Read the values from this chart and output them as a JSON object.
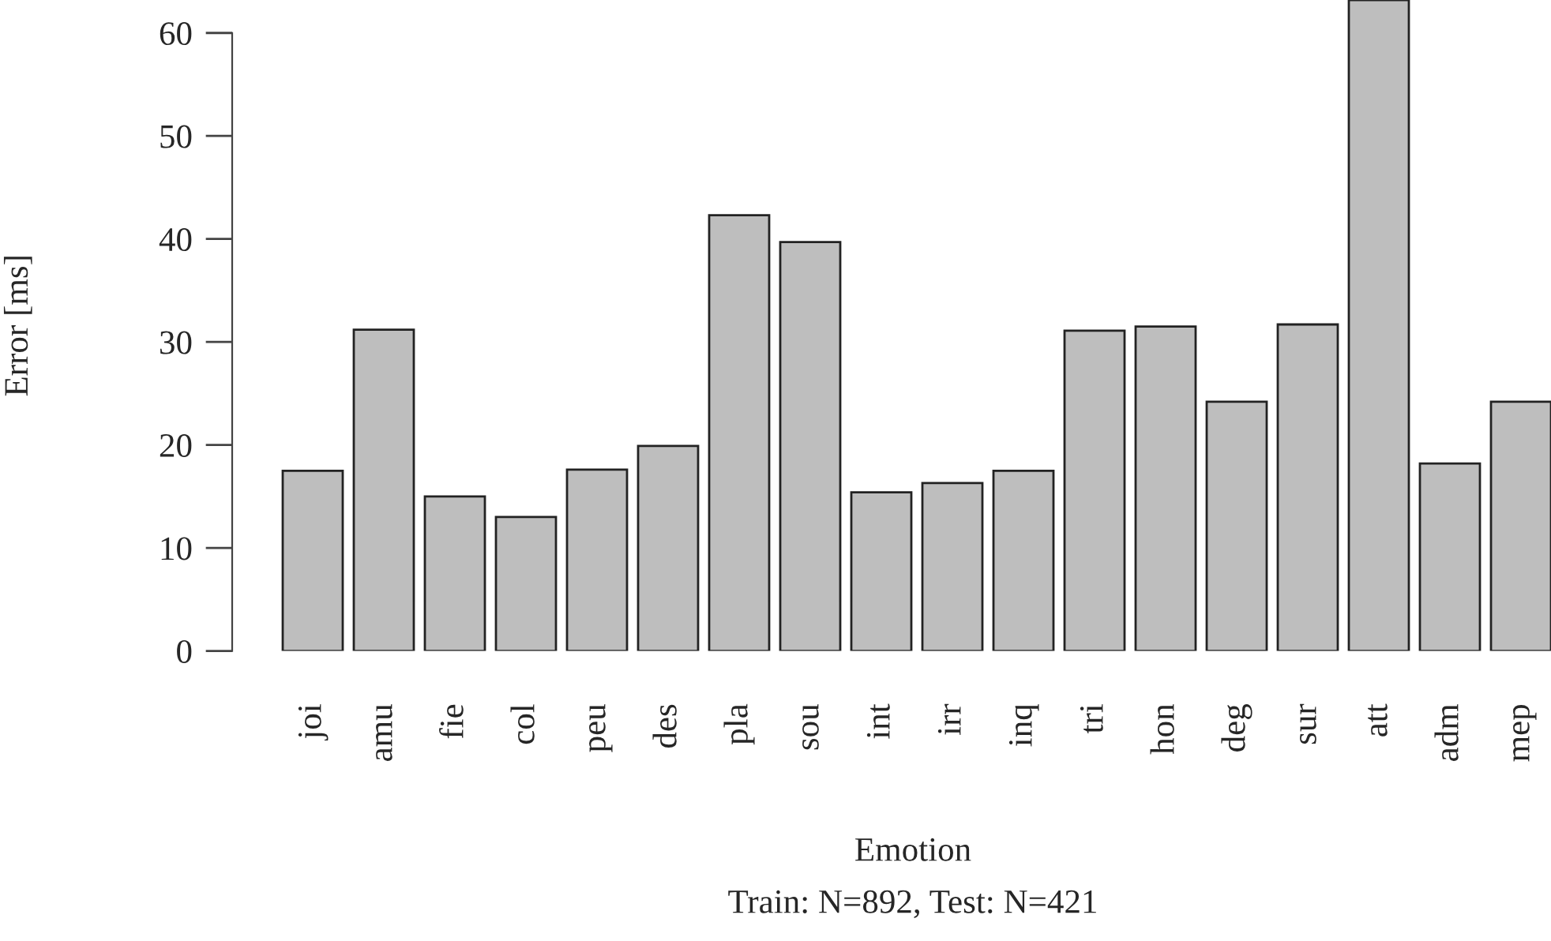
{
  "chart_data": {
    "type": "bar",
    "xlabel": "Emotion",
    "ylabel": "Error [ms]",
    "subtitle": "Train: N=892, Test: N=421",
    "categories": [
      "joi",
      "amu",
      "fie",
      "col",
      "peu",
      "des",
      "pla",
      "sou",
      "int",
      "irr",
      "inq",
      "tri",
      "hon",
      "deg",
      "sur",
      "att",
      "adm",
      "mep"
    ],
    "values": [
      17.5,
      31.2,
      15.0,
      13.0,
      17.6,
      19.9,
      42.3,
      39.7,
      15.4,
      16.3,
      17.5,
      31.1,
      31.5,
      24.2,
      31.7,
      63.2,
      18.2,
      24.2
    ],
    "color": "#bebebe",
    "ylim": [
      0,
      63.2
    ],
    "yticks": [
      0,
      10,
      20,
      30,
      40,
      50,
      60
    ],
    "grid": false
  }
}
